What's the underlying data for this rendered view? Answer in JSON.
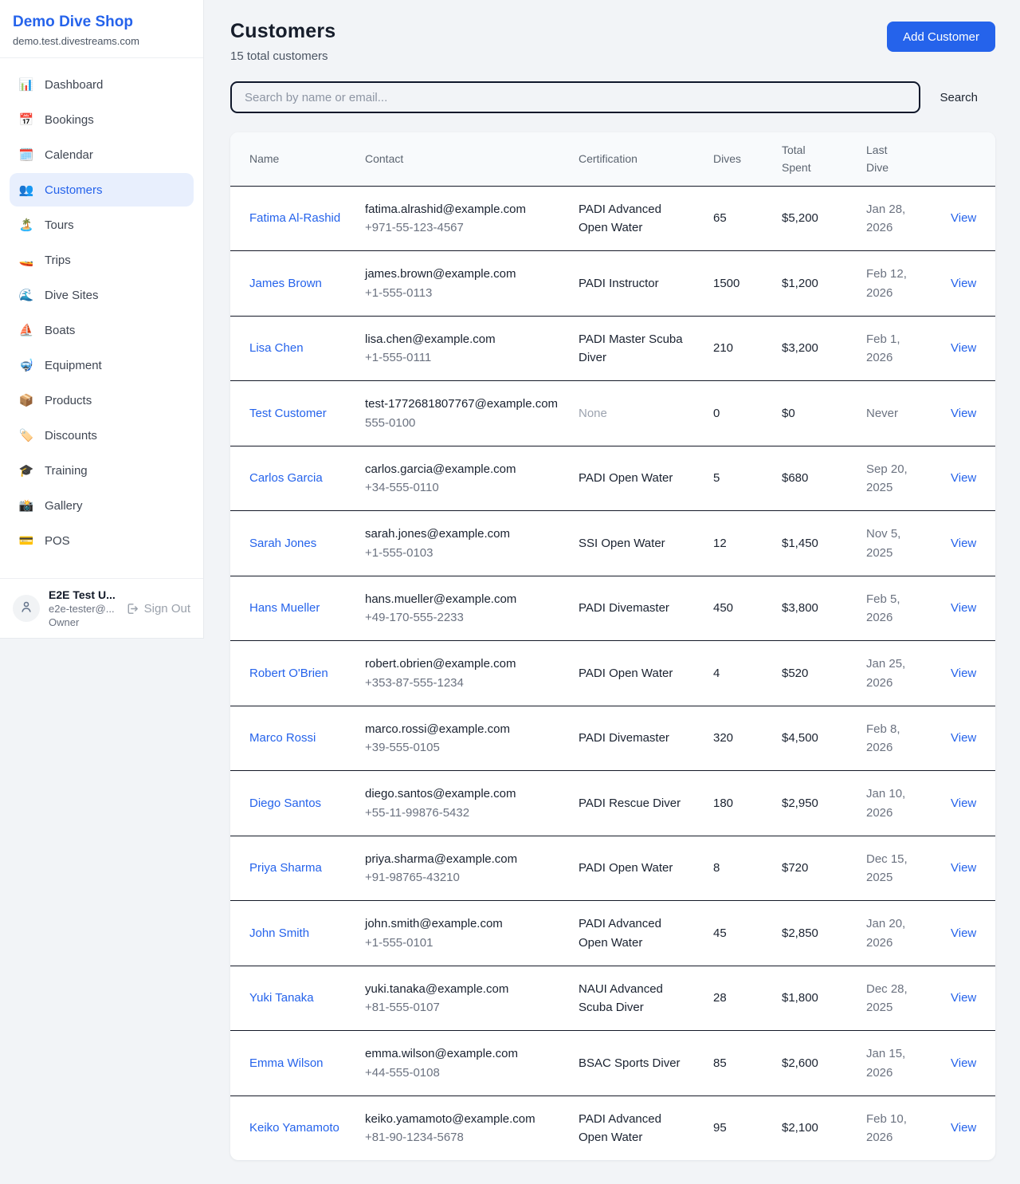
{
  "colors": {
    "accent": "#2563eb",
    "active_item_bg": "#e8effd",
    "row_border": "#141927",
    "page_bg": "#f2f4f7"
  },
  "sidebar": {
    "brand": {
      "title": "Demo Dive Shop",
      "domain": "demo.test.divestreams.com"
    },
    "items": [
      {
        "id": "dashboard",
        "icon": "📊",
        "icon_name": "bar-chart-icon",
        "label": "Dashboard",
        "active": false
      },
      {
        "id": "bookings",
        "icon": "📅",
        "icon_name": "calendar-date-icon",
        "label": "Bookings",
        "active": false
      },
      {
        "id": "calendar",
        "icon": "🗓️",
        "icon_name": "spiral-calendar-icon",
        "label": "Calendar",
        "active": false
      },
      {
        "id": "customers",
        "icon": "👥",
        "icon_name": "people-icon",
        "label": "Customers",
        "active": true
      },
      {
        "id": "tours",
        "icon": "🏝️",
        "icon_name": "island-icon",
        "label": "Tours",
        "active": false
      },
      {
        "id": "trips",
        "icon": "🚤",
        "icon_name": "speedboat-icon",
        "label": "Trips",
        "active": false
      },
      {
        "id": "dive-sites",
        "icon": "🌊",
        "icon_name": "wave-icon",
        "label": "Dive Sites",
        "active": false
      },
      {
        "id": "boats",
        "icon": "⛵",
        "icon_name": "sailboat-icon",
        "label": "Boats",
        "active": false
      },
      {
        "id": "equipment",
        "icon": "🤿",
        "icon_name": "diving-mask-icon",
        "label": "Equipment",
        "active": false
      },
      {
        "id": "products",
        "icon": "📦",
        "icon_name": "package-icon",
        "label": "Products",
        "active": false
      },
      {
        "id": "discounts",
        "icon": "🏷️",
        "icon_name": "tag-icon",
        "label": "Discounts",
        "active": false
      },
      {
        "id": "training",
        "icon": "🎓",
        "icon_name": "graduation-cap-icon",
        "label": "Training",
        "active": false
      },
      {
        "id": "gallery",
        "icon": "📸",
        "icon_name": "camera-flash-icon",
        "label": "Gallery",
        "active": false
      },
      {
        "id": "pos",
        "icon": "💳",
        "icon_name": "credit-card-icon",
        "label": "POS",
        "active": false
      }
    ],
    "user": {
      "name": "E2E Test U...",
      "email": "e2e-tester@...",
      "role": "Owner",
      "sign_out_label": "Sign Out"
    }
  },
  "header": {
    "title": "Customers",
    "subtitle": "15 total customers",
    "add_button_label": "Add Customer"
  },
  "search": {
    "placeholder": "Search by name or email...",
    "button_label": "Search"
  },
  "table": {
    "columns": [
      "Name",
      "Contact",
      "Certification",
      "Dives",
      "Total Spent",
      "Last Dive"
    ],
    "view_label": "View",
    "rows": [
      {
        "name": "Fatima Al-Rashid",
        "email": "fatima.alrashid@example.com",
        "phone": "+971-55-123-4567",
        "certification": "PADI Advanced Open Water",
        "dives": "65",
        "total_spent": "$5,200",
        "last_dive": "Jan 28, 2026"
      },
      {
        "name": "James Brown",
        "email": "james.brown@example.com",
        "phone": "+1-555-0113",
        "certification": "PADI Instructor",
        "dives": "1500",
        "total_spent": "$1,200",
        "last_dive": "Feb 12, 2026"
      },
      {
        "name": "Lisa Chen",
        "email": "lisa.chen@example.com",
        "phone": "+1-555-0111",
        "certification": "PADI Master Scuba Diver",
        "dives": "210",
        "total_spent": "$3,200",
        "last_dive": "Feb 1, 2026"
      },
      {
        "name": "Test Customer",
        "email": "test-1772681807767@example.com",
        "phone": "555-0100",
        "certification": "None",
        "dives": "0",
        "total_spent": "$0",
        "last_dive": "Never"
      },
      {
        "name": "Carlos Garcia",
        "email": "carlos.garcia@example.com",
        "phone": "+34-555-0110",
        "certification": "PADI Open Water",
        "dives": "5",
        "total_spent": "$680",
        "last_dive": "Sep 20, 2025"
      },
      {
        "name": "Sarah Jones",
        "email": "sarah.jones@example.com",
        "phone": "+1-555-0103",
        "certification": "SSI Open Water",
        "dives": "12",
        "total_spent": "$1,450",
        "last_dive": "Nov 5, 2025"
      },
      {
        "name": "Hans Mueller",
        "email": "hans.mueller@example.com",
        "phone": "+49-170-555-2233",
        "certification": "PADI Divemaster",
        "dives": "450",
        "total_spent": "$3,800",
        "last_dive": "Feb 5, 2026"
      },
      {
        "name": "Robert O'Brien",
        "email": "robert.obrien@example.com",
        "phone": "+353-87-555-1234",
        "certification": "PADI Open Water",
        "dives": "4",
        "total_spent": "$520",
        "last_dive": "Jan 25, 2026"
      },
      {
        "name": "Marco Rossi",
        "email": "marco.rossi@example.com",
        "phone": "+39-555-0105",
        "certification": "PADI Divemaster",
        "dives": "320",
        "total_spent": "$4,500",
        "last_dive": "Feb 8, 2026"
      },
      {
        "name": "Diego Santos",
        "email": "diego.santos@example.com",
        "phone": "+55-11-99876-5432",
        "certification": "PADI Rescue Diver",
        "dives": "180",
        "total_spent": "$2,950",
        "last_dive": "Jan 10, 2026"
      },
      {
        "name": "Priya Sharma",
        "email": "priya.sharma@example.com",
        "phone": "+91-98765-43210",
        "certification": "PADI Open Water",
        "dives": "8",
        "total_spent": "$720",
        "last_dive": "Dec 15, 2025"
      },
      {
        "name": "John Smith",
        "email": "john.smith@example.com",
        "phone": "+1-555-0101",
        "certification": "PADI Advanced Open Water",
        "dives": "45",
        "total_spent": "$2,850",
        "last_dive": "Jan 20, 2026"
      },
      {
        "name": "Yuki Tanaka",
        "email": "yuki.tanaka@example.com",
        "phone": "+81-555-0107",
        "certification": "NAUI Advanced Scuba Diver",
        "dives": "28",
        "total_spent": "$1,800",
        "last_dive": "Dec 28, 2025"
      },
      {
        "name": "Emma Wilson",
        "email": "emma.wilson@example.com",
        "phone": "+44-555-0108",
        "certification": "BSAC Sports Diver",
        "dives": "85",
        "total_spent": "$2,600",
        "last_dive": "Jan 15, 2026"
      },
      {
        "name": "Keiko Yamamoto",
        "email": "keiko.yamamoto@example.com",
        "phone": "+81-90-1234-5678",
        "certification": "PADI Advanced Open Water",
        "dives": "95",
        "total_spent": "$2,100",
        "last_dive": "Feb 10, 2026"
      }
    ]
  }
}
